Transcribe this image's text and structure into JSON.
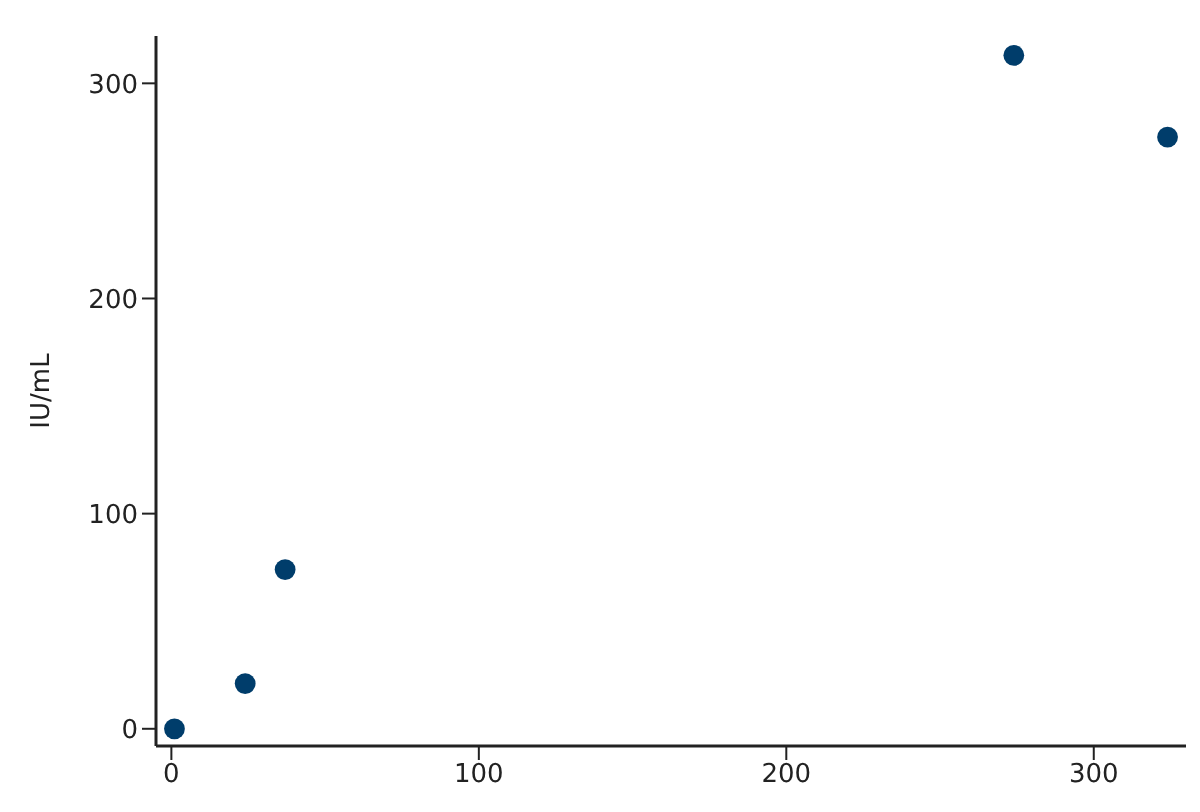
{
  "chart_data": {
    "type": "scatter",
    "ylabel": "IU/mL",
    "x": [
      1,
      24,
      37,
      274,
      324
    ],
    "values": [
      0,
      21,
      74,
      313,
      275
    ],
    "color": "#003d6b",
    "marker": "circle",
    "xlim": [
      -5,
      330
    ],
    "ylim": [
      -8,
      322
    ],
    "xticks": [
      0,
      100,
      200,
      300
    ],
    "yticks": [
      0,
      100,
      200,
      300
    ]
  }
}
